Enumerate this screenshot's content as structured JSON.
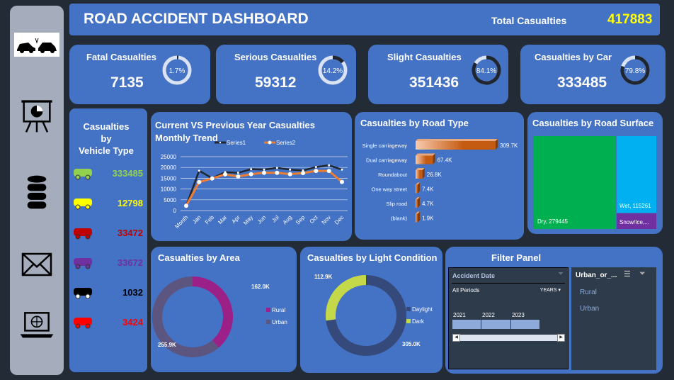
{
  "header": {
    "title": "ROAD ACCIDENT DASHBOARD",
    "total_label": "Total Casualties",
    "total_value": "417883"
  },
  "sidebar": {
    "icons": [
      "car-crash-icon",
      "presentation-chart-icon",
      "database-icon",
      "mail-icon",
      "laptop-globe-icon"
    ]
  },
  "kpis": [
    {
      "label": "Fatal Casualties",
      "value": "7135",
      "pct": "1.7%",
      "fraction": 0.017
    },
    {
      "label": "Serious Casualties",
      "value": "59312",
      "pct": "14.2%",
      "fraction": 0.142
    },
    {
      "label": "Slight Casualties",
      "value": "351436",
      "pct": "84.1%",
      "fraction": 0.841
    },
    {
      "label": "Casualties by Car",
      "value": "333485",
      "pct": "79.8%",
      "fraction": 0.798
    }
  ],
  "vehicle": {
    "title_line1": "Casualties by",
    "title_line2": "Vehicle Type",
    "items": [
      {
        "icon": "car-icon",
        "value": "333485",
        "color": "#92d050"
      },
      {
        "icon": "bus-icon",
        "value": "12798",
        "color": "#ffff00"
      },
      {
        "icon": "truck-icon",
        "value": "33472",
        "color": "#c00000"
      },
      {
        "icon": "motorcycle-icon",
        "value": "33672",
        "color": "#7030a0"
      },
      {
        "icon": "tractor-icon",
        "value": "1032",
        "color": "#000000"
      },
      {
        "icon": "other-vehicle-icon",
        "value": "3424",
        "color": "#ff0000"
      }
    ]
  },
  "chart_data": [
    {
      "type": "line",
      "title": "Current VS Previous Year Casualties Monthly Trend",
      "categories": [
        "Month",
        "Jan",
        "Feb",
        "Mar",
        "Apr",
        "May",
        "Jun",
        "Jul",
        "Aug",
        "Sep",
        "Oct",
        "Nov",
        "Dec"
      ],
      "series": [
        {
          "name": "Series1",
          "color": "#1f2630",
          "values": [
            2200,
            18500,
            15000,
            17800,
            17500,
            19200,
            19000,
            19800,
            19000,
            18600,
            20200,
            21000,
            19000
          ]
        },
        {
          "name": "Series2",
          "color": "#ed7d31",
          "values": [
            2200,
            13200,
            14900,
            16800,
            15800,
            16900,
            17500,
            17500,
            16900,
            17400,
            18400,
            18400,
            13300
          ]
        }
      ],
      "ylim": [
        0,
        25000
      ],
      "yticks": [
        "0",
        "5000",
        "10000",
        "15000",
        "20000",
        "25000"
      ],
      "grid": true,
      "legend": "top"
    },
    {
      "type": "bar",
      "orientation": "horizontal",
      "title": "Casualties by Road Type",
      "categories": [
        "Single carriageway",
        "Dual carriageway",
        "Roundabout",
        "One way street",
        "Slip road",
        "(blank)"
      ],
      "values": [
        309.7,
        67.4,
        26.8,
        7.4,
        4.7,
        1.9
      ],
      "labels": [
        "309.7K",
        "67.4K",
        "26.8K",
        "7.4K",
        "4.7K",
        "1.9K"
      ],
      "color": "#c55a11"
    },
    {
      "type": "treemap",
      "title": "Casualties by Road Surface",
      "items": [
        {
          "label": "Dry, 279445",
          "value": 279445,
          "color": "#00b050"
        },
        {
          "label": "Wet, 115261",
          "value": 115261,
          "color": "#00b0f0"
        },
        {
          "label": "Snow/Ice,...",
          "color": "#7030a0"
        }
      ]
    },
    {
      "type": "pie",
      "title": "Casualties by Area",
      "donut": true,
      "categories": [
        "Rural",
        "Urban"
      ],
      "values": [
        162.0,
        255.9
      ],
      "labels": [
        "162.0K",
        "255.9K"
      ],
      "colors": [
        "#c00000",
        "#c55a11"
      ],
      "legend": "right"
    },
    {
      "type": "pie",
      "title": "Casualties by Light Condition",
      "donut": true,
      "categories": [
        "Daylight",
        "Dark"
      ],
      "values": [
        305.0,
        112.9
      ],
      "labels": [
        "305.0K",
        "112.9K"
      ],
      "colors": [
        "#1f3864",
        "#c4d94a"
      ],
      "legend": "right"
    }
  ],
  "filter": {
    "title": "Filter Panel",
    "date_slicer": {
      "title": "Accident Date",
      "period": "All Periods",
      "level": "YEARS",
      "years": [
        "2021",
        "2022",
        "2023"
      ]
    },
    "area_slicer": {
      "title": "Urban_or_...",
      "items": [
        "Rural",
        "Urban"
      ]
    }
  }
}
